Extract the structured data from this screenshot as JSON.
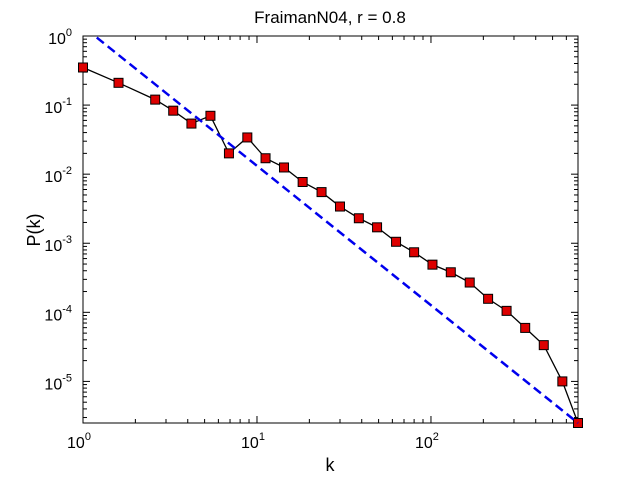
{
  "chart_data": {
    "type": "line",
    "title": "FraimanN04, r = 0.8",
    "xlabel": "k",
    "ylabel": "P(k)",
    "xscale": "log",
    "yscale": "log",
    "xlim": [
      1,
      700
    ],
    "ylim": [
      2.5e-06,
      1
    ],
    "grid": false,
    "legend": "none",
    "x_ticks": [
      {
        "value": 1,
        "base": "10",
        "exp": "0"
      },
      {
        "value": 10,
        "base": "10",
        "exp": "1"
      },
      {
        "value": 100,
        "base": "10",
        "exp": "2"
      }
    ],
    "y_ticks": [
      {
        "value": 1,
        "base": "10",
        "exp": "0"
      },
      {
        "value": 0.1,
        "base": "10",
        "exp": "-1"
      },
      {
        "value": 0.01,
        "base": "10",
        "exp": "-2"
      },
      {
        "value": 0.001,
        "base": "10",
        "exp": "-3"
      },
      {
        "value": 0.0001,
        "base": "10",
        "exp": "-4"
      },
      {
        "value": 1e-05,
        "base": "10",
        "exp": "-5"
      }
    ],
    "series": [
      {
        "style": "solid-markers",
        "color": "#000000",
        "marker_fill": "#dd0000",
        "x": [
          1,
          1.6,
          2.6,
          3.3,
          4.2,
          5.4,
          6.9,
          8.8,
          11.2,
          14.3,
          18.3,
          23.5,
          30,
          38.5,
          49,
          63,
          80,
          102,
          130,
          167,
          213,
          272,
          348,
          445,
          569,
          700
        ],
        "y": [
          0.35,
          0.21,
          0.12,
          0.083,
          0.054,
          0.07,
          0.02,
          0.034,
          0.017,
          0.0125,
          0.0077,
          0.0055,
          0.0034,
          0.0023,
          0.0017,
          0.00105,
          0.00074,
          0.00049,
          0.00038,
          0.00027,
          0.000157,
          0.000105,
          5.95e-05,
          3.35e-05,
          1e-05,
          2.5e-06
        ]
      },
      {
        "style": "dashed",
        "color": "#0000ee",
        "x": [
          1.2,
          700
        ],
        "y": [
          0.95,
          2.5e-06
        ]
      }
    ]
  }
}
